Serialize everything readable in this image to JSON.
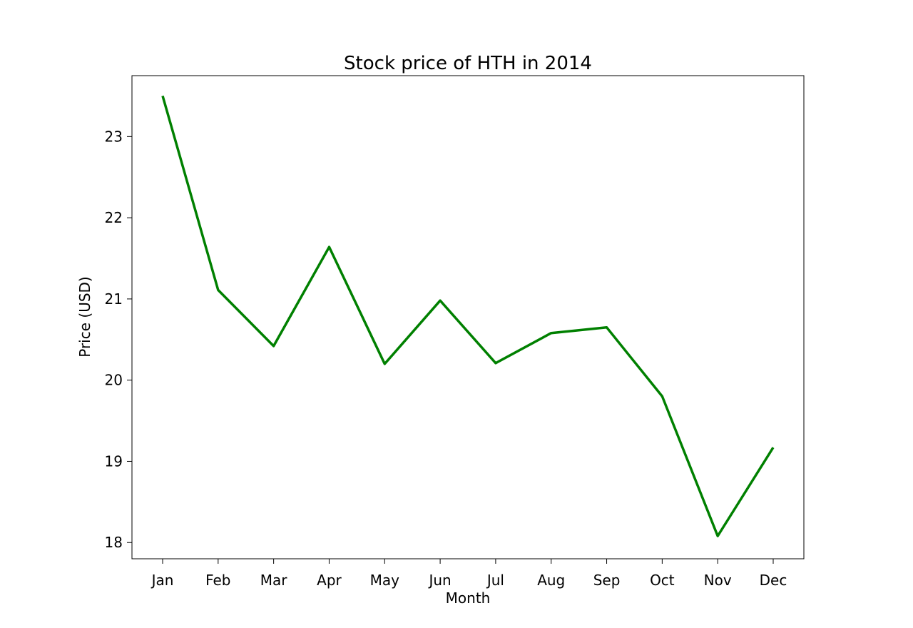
{
  "chart_data": {
    "type": "line",
    "title": "Stock price of HTH in 2014",
    "xlabel": "Month",
    "ylabel": "Price (USD)",
    "categories": [
      "Jan",
      "Feb",
      "Mar",
      "Apr",
      "May",
      "Jun",
      "Jul",
      "Aug",
      "Sep",
      "Oct",
      "Nov",
      "Dec"
    ],
    "values": [
      23.5,
      21.11,
      20.42,
      21.64,
      20.2,
      20.98,
      20.21,
      20.58,
      20.65,
      19.8,
      18.08,
      19.17
    ],
    "ylim": [
      17.8,
      23.75
    ],
    "yticks": [
      18,
      19,
      20,
      21,
      22,
      23
    ],
    "grid": false,
    "line_color": "#008000"
  }
}
